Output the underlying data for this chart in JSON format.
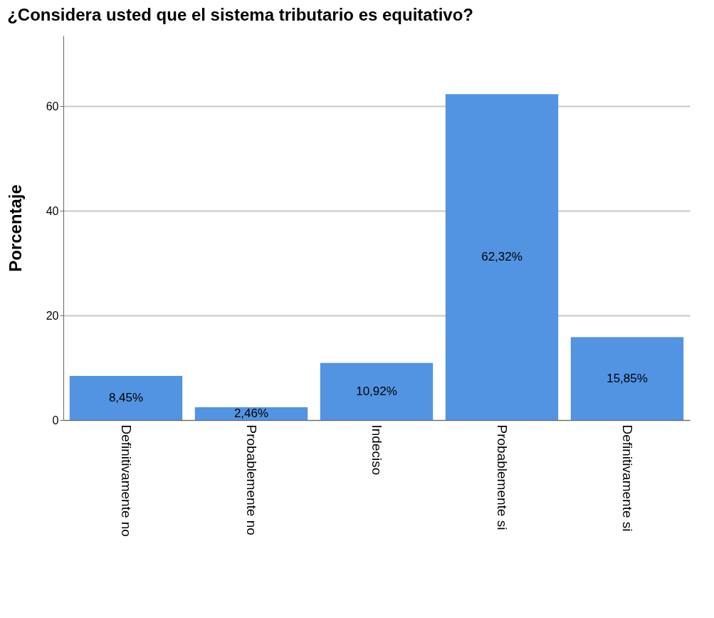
{
  "chart_data": {
    "type": "bar",
    "title": "¿Considera usted que el sistema tributario es equitativo?",
    "ylabel": "Porcentaje",
    "categories": [
      "Definitivamente no",
      "Probablemente no",
      "Indeciso",
      "Probablemente si",
      "Definitivamente si"
    ],
    "values": [
      8.45,
      2.46,
      10.92,
      62.32,
      15.85
    ],
    "value_labels": [
      "8,45%",
      "2,46%",
      "10,92%",
      "62,32%",
      "15,85%"
    ],
    "color": "#5294e2",
    "ylim": [
      0,
      73.5
    ],
    "yticks": [
      0,
      20,
      40,
      60
    ],
    "grid": "y"
  }
}
